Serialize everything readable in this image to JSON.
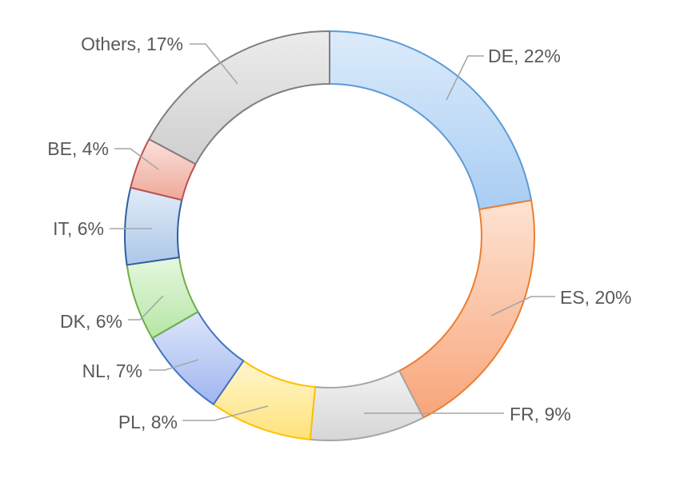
{
  "chart_data": {
    "type": "pie",
    "variant": "doughnut",
    "title": "",
    "legend": "none",
    "slices": [
      {
        "category": "DE",
        "value": 22,
        "label": "DE, 22%",
        "fill_light": "#dcebfb",
        "fill_dark": "#a9cdf3",
        "stroke": "#5b9bd5"
      },
      {
        "category": "ES",
        "value": 20,
        "label": "ES, 20%",
        "fill_light": "#fde3d3",
        "fill_dark": "#f8a57a",
        "stroke": "#ed7d31"
      },
      {
        "category": "FR",
        "value": 9,
        "label": "FR, 9%",
        "fill_light": "#f2f2f2",
        "fill_dark": "#d6d6d6",
        "stroke": "#a5a5a5"
      },
      {
        "category": "PL",
        "value": 8,
        "label": "PL, 8%",
        "fill_light": "#fff6cf",
        "fill_dark": "#ffe27a",
        "stroke": "#ffc000"
      },
      {
        "category": "NL",
        "value": 7,
        "label": "NL, 7%",
        "fill_light": "#dde6fa",
        "fill_dark": "#9fb6ef",
        "stroke": "#4472c4"
      },
      {
        "category": "DK",
        "value": 6,
        "label": "DK, 6%",
        "fill_light": "#e5f7df",
        "fill_dark": "#b6e6a4",
        "stroke": "#70ad47"
      },
      {
        "category": "IT",
        "value": 6,
        "label": "IT, 6%",
        "fill_light": "#e1ebf7",
        "fill_dark": "#adc7e8",
        "stroke": "#2e5f9e"
      },
      {
        "category": "BE",
        "value": 4,
        "label": "BE, 4%",
        "fill_light": "#fbe1dc",
        "fill_dark": "#eea899",
        "stroke": "#c0504d"
      },
      {
        "category": "Others",
        "value": 17,
        "label": "Others, 17%",
        "fill_light": "#ececec",
        "fill_dark": "#cfcfcf",
        "stroke": "#7f7f7f"
      }
    ]
  }
}
